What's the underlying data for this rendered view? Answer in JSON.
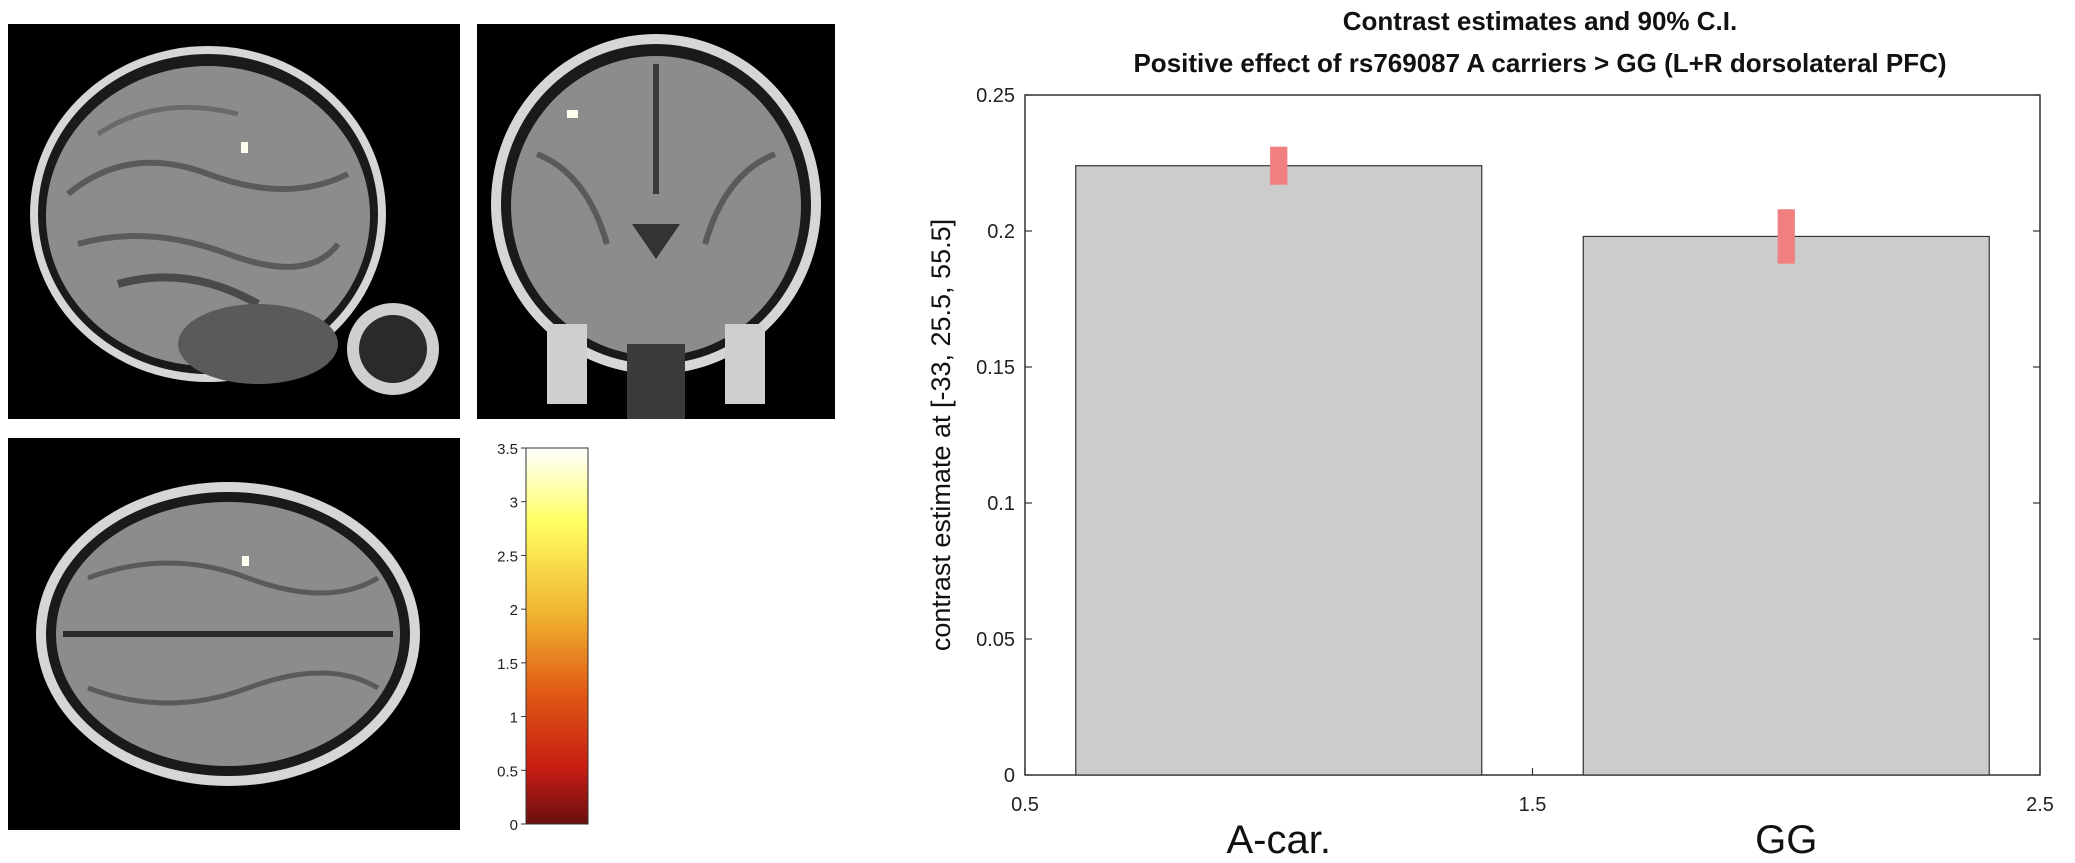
{
  "brain_panels": {
    "views": [
      "sagittal",
      "coronal",
      "axial"
    ],
    "colors": {
      "background": "#000000",
      "tissue": "#8a8a8a",
      "skull": "#cfcfcf",
      "activation": "#fffff0"
    }
  },
  "colorbar": {
    "ticks": [
      "3.5",
      "3",
      "2.5",
      "2",
      "1.5",
      "1",
      "0.5",
      "0"
    ],
    "min": 0,
    "max": 3.5,
    "colors": [
      "#ffffff",
      "#ffff60",
      "#f0b030",
      "#e05a14",
      "#c81e14",
      "#6b0f0f"
    ]
  },
  "chart_data": {
    "type": "bar",
    "title": "Contrast estimates and 90% C.I.",
    "subtitle": "Positive effect of rs769087 A carriers > GG (L+R dorsolateral PFC)",
    "ylabel": "contrast estimate at [-33, 25.5, 55.5]",
    "xlabel": "",
    "categories": [
      "A-car.",
      "GG"
    ],
    "x_positions": [
      1,
      2
    ],
    "values": [
      0.224,
      0.198
    ],
    "ci_low": [
      0.217,
      0.188
    ],
    "ci_high": [
      0.231,
      0.208
    ],
    "xlim": [
      0.5,
      2.5
    ],
    "ylim": [
      0,
      0.25
    ],
    "x_ticks": [
      0.5,
      1.5,
      2.5
    ],
    "x_tick_labels": [
      "0.5",
      "1.5",
      "2.5"
    ],
    "y_ticks": [
      0,
      0.05,
      0.1,
      0.15,
      0.2,
      0.25
    ],
    "y_tick_labels": [
      "0",
      "0.05",
      "0.1",
      "0.15",
      "0.2",
      "0.25"
    ],
    "bar_color": "#cccccc",
    "ci_color": "#f08080",
    "grid": false
  }
}
